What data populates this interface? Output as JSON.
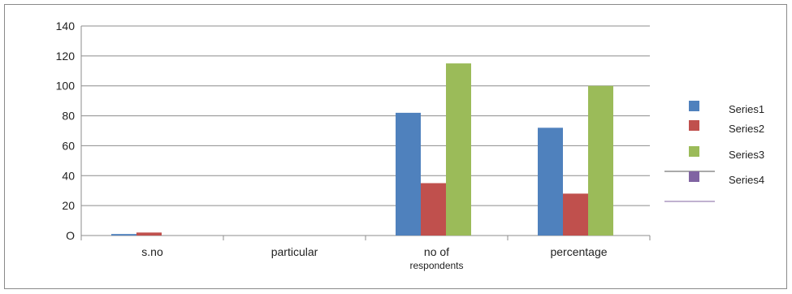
{
  "chart_data": {
    "type": "bar",
    "categories": [
      "s.no",
      "particular",
      "no of respondents",
      "percentage"
    ],
    "category_lines": [
      [
        "s.no"
      ],
      [
        "particular"
      ],
      [
        "no of",
        "respondents"
      ],
      [
        "percentage"
      ]
    ],
    "series": [
      {
        "name": "Series1",
        "color": "#4f81bd",
        "values": [
          1,
          0,
          82,
          72
        ]
      },
      {
        "name": "Series2",
        "color": "#c0504d",
        "values": [
          2,
          0,
          35,
          28
        ]
      },
      {
        "name": "Series3",
        "color": "#9bbb59",
        "values": [
          0,
          0,
          115,
          100
        ]
      },
      {
        "name": "Series4",
        "color": "#8064a2",
        "values": [
          0,
          0,
          0,
          0
        ]
      }
    ],
    "ylim": [
      0,
      140
    ],
    "yticks": [
      0,
      20,
      40,
      60,
      80,
      100,
      120,
      140
    ],
    "ytick_labels": [
      "O",
      "20",
      "40",
      "60",
      "80",
      "100",
      "120",
      "140"
    ],
    "grid": true,
    "legend_position": "right",
    "title": "",
    "xlabel": "",
    "ylabel": ""
  }
}
